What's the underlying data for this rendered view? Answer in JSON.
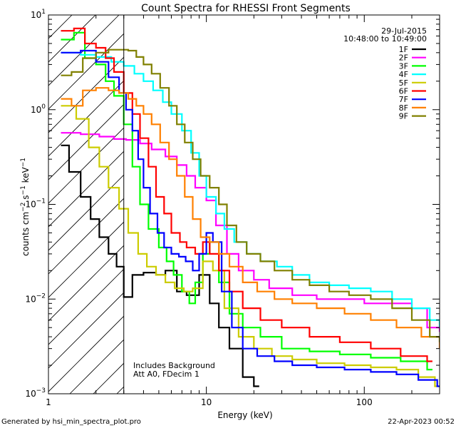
{
  "chart_data": {
    "type": "line",
    "title": "Count Spectra for RHESSI Front Segments",
    "xlabel": "Energy (keV)",
    "ylabel_parts": {
      "a": "counts cm",
      "b": "−2",
      "c": " s",
      "d": "−1",
      "e": " keV",
      "f": "−1"
    },
    "xscale": "log",
    "yscale": "log",
    "xlim": [
      1,
      300
    ],
    "ylim": [
      0.001,
      10
    ],
    "x_ticks": [
      {
        "value": 1,
        "label": "1"
      },
      {
        "value": 10,
        "label": "10"
      },
      {
        "value": 100,
        "label": "100"
      }
    ],
    "y_ticks": [
      {
        "value": 0.001,
        "base": "10",
        "exp": "−3"
      },
      {
        "value": 0.01,
        "base": "10",
        "exp": "−2"
      },
      {
        "value": 0.1,
        "base": "10",
        "exp": "−1"
      },
      {
        "value": 1,
        "base": "10",
        "exp": "0"
      },
      {
        "value": 10,
        "base": "10",
        "exp": "1"
      }
    ],
    "shaded_region": {
      "x_min": 1,
      "x_max": 3,
      "style": "diagonal-hatch"
    },
    "date": "29-Jul-2015",
    "time_range": "10:48:00 to 10:49:00",
    "annotations": [
      "Includes Background",
      "Att A0, FDecim 1"
    ],
    "footer_left": "Generated by hsi_min_spectra_plot.pro",
    "footer_right": "22-Apr-2023 00:52",
    "series": [
      {
        "name": "1F",
        "color": "#000000",
        "points": [
          [
            1.2,
            0.42
          ],
          [
            1.35,
            0.22
          ],
          [
            1.6,
            0.12
          ],
          [
            1.85,
            0.07
          ],
          [
            2.1,
            0.045
          ],
          [
            2.4,
            0.03
          ],
          [
            2.7,
            0.022
          ],
          [
            3.0,
            0.0105
          ],
          [
            3.4,
            0.018
          ],
          [
            4.0,
            0.019
          ],
          [
            4.8,
            0.018
          ],
          [
            5.5,
            0.02
          ],
          [
            6.5,
            0.012
          ],
          [
            7.5,
            0.011
          ],
          [
            9.0,
            0.018
          ],
          [
            10.5,
            0.009
          ],
          [
            12.0,
            0.005
          ],
          [
            14.0,
            0.003
          ],
          [
            17.0,
            0.0015
          ],
          [
            20.0,
            0.0012
          ]
        ]
      },
      {
        "name": "2F",
        "color": "#ff00ff",
        "points": [
          [
            1.2,
            0.57
          ],
          [
            1.6,
            0.55
          ],
          [
            2.1,
            0.52
          ],
          [
            2.6,
            0.49
          ],
          [
            3.1,
            0.48
          ],
          [
            3.8,
            0.44
          ],
          [
            4.5,
            0.38
          ],
          [
            5.5,
            0.32
          ],
          [
            6.5,
            0.26
          ],
          [
            7.5,
            0.2
          ],
          [
            8.5,
            0.15
          ],
          [
            10.0,
            0.11
          ],
          [
            11.5,
            0.06
          ],
          [
            13.5,
            0.03
          ],
          [
            16.0,
            0.02
          ],
          [
            20.0,
            0.016
          ],
          [
            25.0,
            0.013
          ],
          [
            35.0,
            0.011
          ],
          [
            50.0,
            0.01
          ],
          [
            70.0,
            0.01
          ],
          [
            100.0,
            0.009
          ],
          [
            150.0,
            0.009
          ],
          [
            200.0,
            0.008
          ],
          [
            250.0,
            0.005
          ],
          [
            300.0,
            0.0045
          ]
        ]
      },
      {
        "name": "3F",
        "color": "#00ff00",
        "points": [
          [
            1.2,
            5.5
          ],
          [
            1.45,
            6.5
          ],
          [
            1.7,
            3.5
          ],
          [
            2.0,
            3.0
          ],
          [
            2.3,
            2.0
          ],
          [
            2.6,
            1.4
          ],
          [
            3.0,
            0.7
          ],
          [
            3.4,
            0.25
          ],
          [
            3.8,
            0.1
          ],
          [
            4.3,
            0.055
          ],
          [
            5.0,
            0.035
          ],
          [
            5.6,
            0.025
          ],
          [
            6.2,
            0.018
          ],
          [
            7.0,
            0.012
          ],
          [
            7.8,
            0.009
          ],
          [
            8.5,
            0.015
          ],
          [
            9.5,
            0.03
          ],
          [
            10.5,
            0.04
          ],
          [
            12.0,
            0.015
          ],
          [
            14.0,
            0.007
          ],
          [
            17.0,
            0.005
          ],
          [
            22.0,
            0.004
          ],
          [
            30.0,
            0.003
          ],
          [
            45.0,
            0.0028
          ],
          [
            70.0,
            0.0026
          ],
          [
            110.0,
            0.0024
          ],
          [
            170.0,
            0.0022
          ],
          [
            250.0,
            0.0018
          ]
        ]
      },
      {
        "name": "4F",
        "color": "#00ffff",
        "points": [
          [
            1.2,
            4.0
          ],
          [
            1.6,
            3.8
          ],
          [
            2.0,
            3.6
          ],
          [
            2.5,
            3.2
          ],
          [
            3.0,
            2.9
          ],
          [
            3.5,
            2.4
          ],
          [
            4.0,
            2.0
          ],
          [
            4.6,
            1.6
          ],
          [
            5.3,
            1.2
          ],
          [
            6.0,
            0.9
          ],
          [
            7.0,
            0.6
          ],
          [
            8.0,
            0.35
          ],
          [
            9.0,
            0.2
          ],
          [
            10.0,
            0.12
          ],
          [
            11.5,
            0.08
          ],
          [
            13.0,
            0.055
          ],
          [
            15.0,
            0.04
          ],
          [
            18.0,
            0.03
          ],
          [
            22.0,
            0.025
          ],
          [
            28.0,
            0.022
          ],
          [
            35.0,
            0.018
          ],
          [
            45.0,
            0.015
          ],
          [
            60.0,
            0.014
          ],
          [
            80.0,
            0.013
          ],
          [
            110.0,
            0.012
          ],
          [
            150.0,
            0.01
          ],
          [
            200.0,
            0.008
          ],
          [
            260.0,
            0.006
          ],
          [
            300.0,
            0.005
          ]
        ]
      },
      {
        "name": "5F",
        "color": "#cccc00",
        "points": [
          [
            1.2,
            1.1
          ],
          [
            1.5,
            0.8
          ],
          [
            1.8,
            0.4
          ],
          [
            2.1,
            0.25
          ],
          [
            2.4,
            0.15
          ],
          [
            2.8,
            0.09
          ],
          [
            3.2,
            0.05
          ],
          [
            3.7,
            0.03
          ],
          [
            4.2,
            0.022
          ],
          [
            4.8,
            0.018
          ],
          [
            5.5,
            0.015
          ],
          [
            6.3,
            0.013
          ],
          [
            7.2,
            0.012
          ],
          [
            8.2,
            0.013
          ],
          [
            9.5,
            0.025
          ],
          [
            11.0,
            0.02
          ],
          [
            13.0,
            0.008
          ],
          [
            16.0,
            0.004
          ],
          [
            20.0,
            0.003
          ],
          [
            26.0,
            0.0025
          ],
          [
            35.0,
            0.0023
          ],
          [
            50.0,
            0.0021
          ],
          [
            75.0,
            0.002
          ],
          [
            110.0,
            0.0019
          ],
          [
            160.0,
            0.0018
          ],
          [
            220.0,
            0.0015
          ],
          [
            280.0,
            0.0012
          ]
        ]
      },
      {
        "name": "6F",
        "color": "#ff0000",
        "points": [
          [
            1.2,
            6.8
          ],
          [
            1.45,
            7.2
          ],
          [
            1.7,
            5.0
          ],
          [
            2.0,
            4.5
          ],
          [
            2.3,
            3.5
          ],
          [
            2.6,
            2.5
          ],
          [
            3.0,
            1.5
          ],
          [
            3.4,
            0.9
          ],
          [
            3.8,
            0.5
          ],
          [
            4.3,
            0.25
          ],
          [
            4.8,
            0.12
          ],
          [
            5.4,
            0.08
          ],
          [
            6.0,
            0.05
          ],
          [
            6.8,
            0.04
          ],
          [
            7.5,
            0.035
          ],
          [
            8.5,
            0.03
          ],
          [
            9.5,
            0.04
          ],
          [
            10.5,
            0.03
          ],
          [
            12.0,
            0.02
          ],
          [
            14.0,
            0.012
          ],
          [
            17.0,
            0.008
          ],
          [
            22.0,
            0.006
          ],
          [
            30.0,
            0.005
          ],
          [
            45.0,
            0.004
          ],
          [
            70.0,
            0.0035
          ],
          [
            110.0,
            0.003
          ],
          [
            170.0,
            0.0025
          ],
          [
            250.0,
            0.0022
          ]
        ]
      },
      {
        "name": "7F",
        "color": "#0000ff",
        "points": [
          [
            1.2,
            4.0
          ],
          [
            1.6,
            4.2
          ],
          [
            2.0,
            3.2
          ],
          [
            2.4,
            2.2
          ],
          [
            2.8,
            1.5
          ],
          [
            3.1,
            1.0
          ],
          [
            3.4,
            0.6
          ],
          [
            3.7,
            0.3
          ],
          [
            4.0,
            0.15
          ],
          [
            4.4,
            0.08
          ],
          [
            4.9,
            0.05
          ],
          [
            5.4,
            0.035
          ],
          [
            6.0,
            0.03
          ],
          [
            6.7,
            0.028
          ],
          [
            7.4,
            0.025
          ],
          [
            8.2,
            0.02
          ],
          [
            9.0,
            0.03
          ],
          [
            10.0,
            0.05
          ],
          [
            11.0,
            0.04
          ],
          [
            12.5,
            0.012
          ],
          [
            14.5,
            0.005
          ],
          [
            17.0,
            0.003
          ],
          [
            21.0,
            0.0025
          ],
          [
            27.0,
            0.0022
          ],
          [
            35.0,
            0.002
          ],
          [
            50.0,
            0.0019
          ],
          [
            75.0,
            0.0018
          ],
          [
            110.0,
            0.0017
          ],
          [
            160.0,
            0.0016
          ],
          [
            220.0,
            0.0014
          ],
          [
            290.0,
            0.0012
          ]
        ]
      },
      {
        "name": "8F",
        "color": "#ff8000",
        "points": [
          [
            1.2,
            1.3
          ],
          [
            1.4,
            1.1
          ],
          [
            1.65,
            1.6
          ],
          [
            2.0,
            1.7
          ],
          [
            2.4,
            1.6
          ],
          [
            2.8,
            1.5
          ],
          [
            3.2,
            1.3
          ],
          [
            3.6,
            1.1
          ],
          [
            4.0,
            0.9
          ],
          [
            4.5,
            0.7
          ],
          [
            5.1,
            0.45
          ],
          [
            5.8,
            0.3
          ],
          [
            6.5,
            0.2
          ],
          [
            7.3,
            0.12
          ],
          [
            8.2,
            0.07
          ],
          [
            9.2,
            0.045
          ],
          [
            10.5,
            0.04
          ],
          [
            12.0,
            0.03
          ],
          [
            14.0,
            0.022
          ],
          [
            17.0,
            0.015
          ],
          [
            21.0,
            0.012
          ],
          [
            27.0,
            0.01
          ],
          [
            35.0,
            0.009
          ],
          [
            50.0,
            0.008
          ],
          [
            75.0,
            0.007
          ],
          [
            110.0,
            0.006
          ],
          [
            160.0,
            0.005
          ],
          [
            230.0,
            0.004
          ],
          [
            300.0,
            0.003
          ]
        ]
      },
      {
        "name": "9F",
        "color": "#808000",
        "points": [
          [
            1.2,
            2.3
          ],
          [
            1.4,
            2.5
          ],
          [
            1.65,
            3.5
          ],
          [
            2.0,
            4.0
          ],
          [
            2.4,
            4.3
          ],
          [
            2.8,
            4.3
          ],
          [
            3.2,
            4.2
          ],
          [
            3.6,
            3.6
          ],
          [
            4.0,
            3.0
          ],
          [
            4.5,
            2.4
          ],
          [
            5.1,
            1.7
          ],
          [
            5.8,
            1.1
          ],
          [
            6.5,
            0.7
          ],
          [
            7.3,
            0.45
          ],
          [
            8.2,
            0.3
          ],
          [
            9.2,
            0.2
          ],
          [
            10.5,
            0.15
          ],
          [
            12.0,
            0.1
          ],
          [
            13.5,
            0.06
          ],
          [
            15.5,
            0.04
          ],
          [
            18.0,
            0.03
          ],
          [
            22.0,
            0.025
          ],
          [
            27.0,
            0.02
          ],
          [
            35.0,
            0.016
          ],
          [
            45.0,
            0.014
          ],
          [
            60.0,
            0.012
          ],
          [
            80.0,
            0.011
          ],
          [
            110.0,
            0.01
          ],
          [
            150.0,
            0.008
          ],
          [
            200.0,
            0.006
          ],
          [
            260.0,
            0.004
          ],
          [
            300.0,
            0.0035
          ]
        ]
      }
    ]
  }
}
